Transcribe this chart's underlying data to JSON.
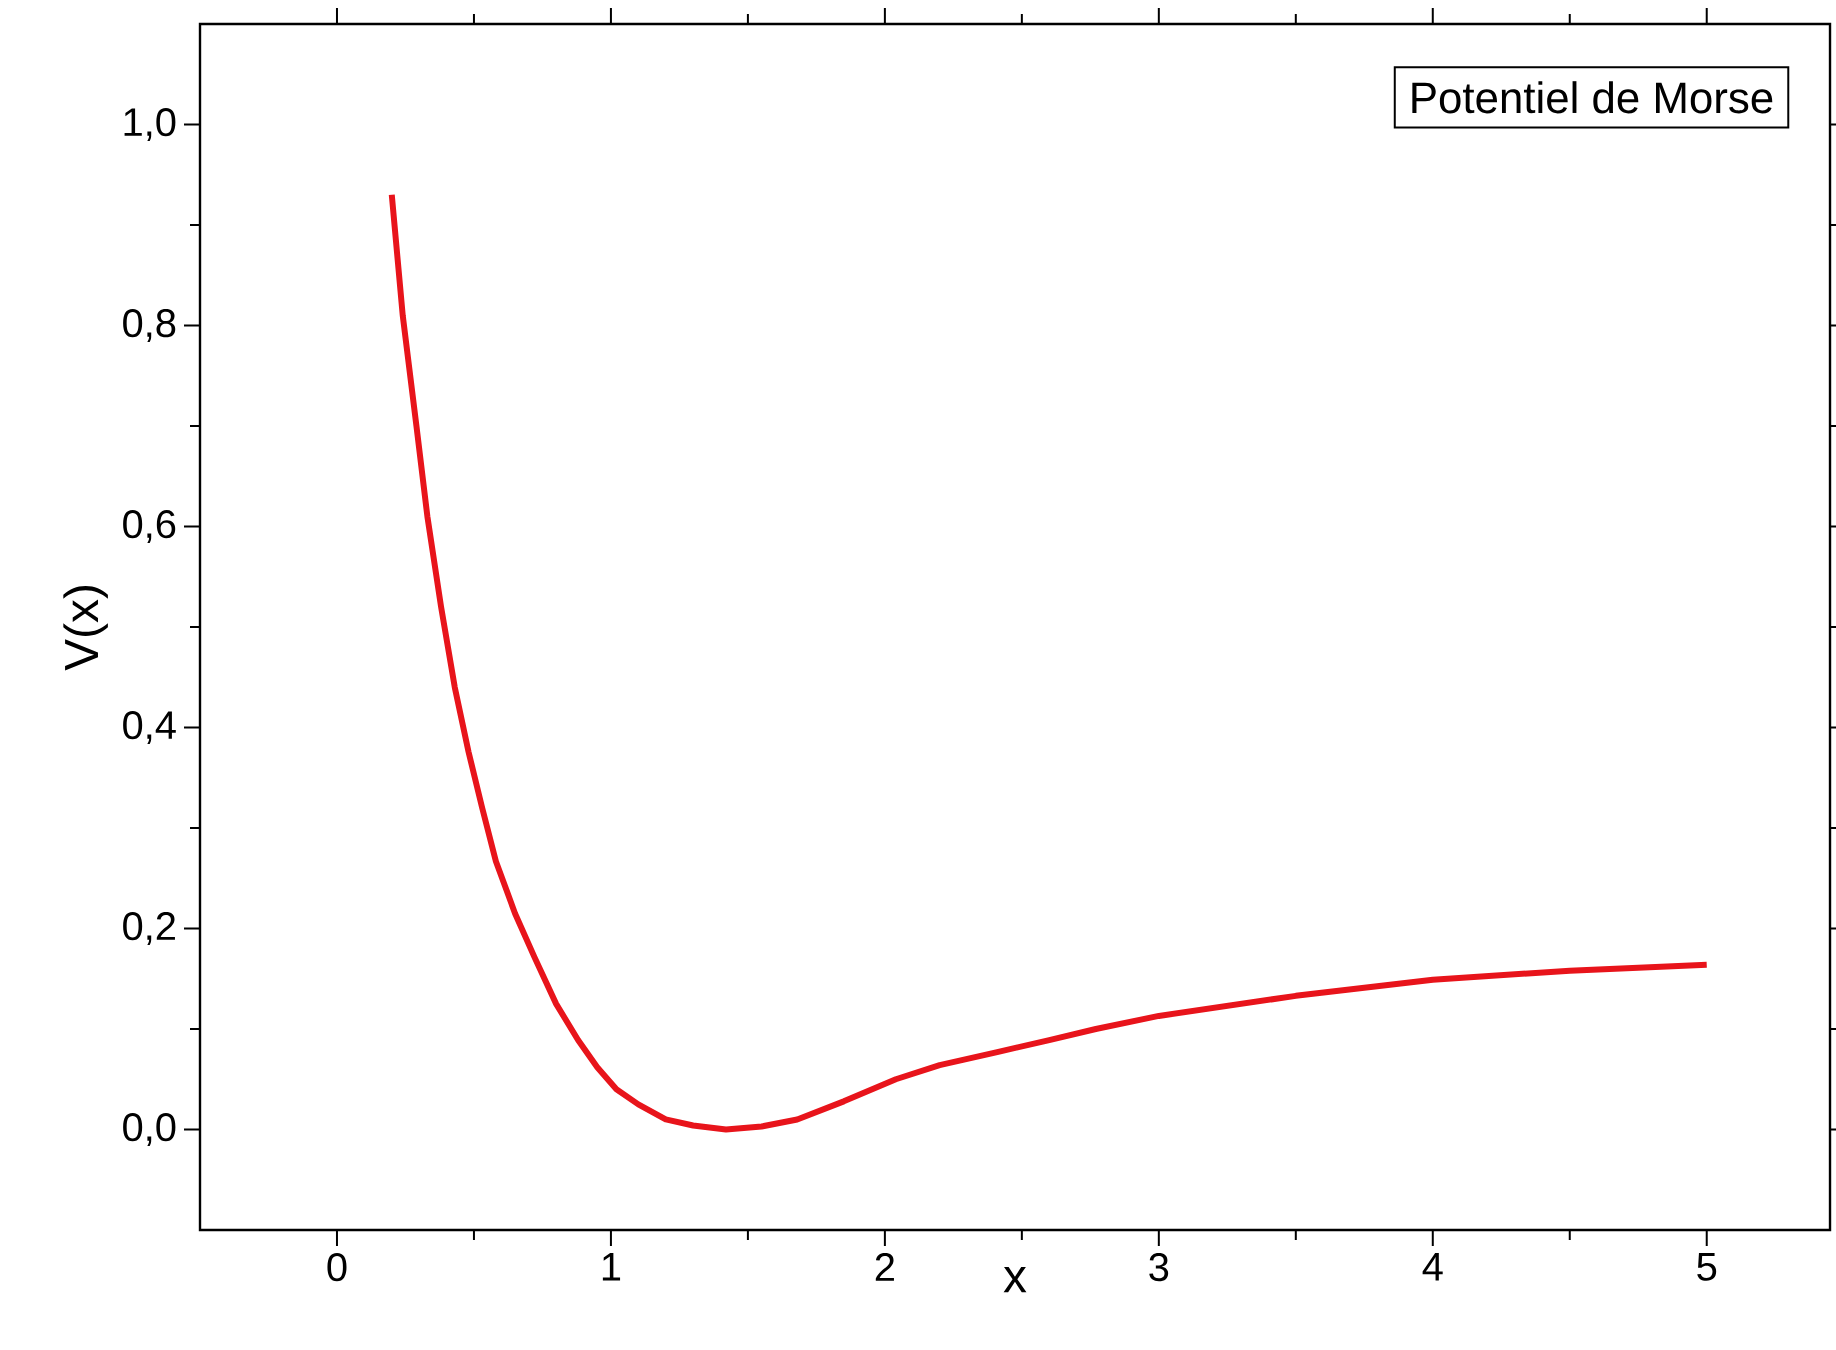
{
  "chart_data": {
    "type": "line",
    "xlabel": "x",
    "ylabel": "V(x)",
    "annotations": [
      "Potentiel de Morse"
    ],
    "series": [
      {
        "color": "#e8141b",
        "x": [
          0.2,
          0.24,
          0.29,
          0.33,
          0.38,
          0.43,
          0.48,
          0.53,
          0.58,
          0.65,
          0.72,
          0.8,
          0.88,
          0.95,
          1.02,
          1.1,
          1.2,
          1.3,
          1.42,
          1.55,
          1.68,
          1.85,
          2.04,
          2.2,
          2.41,
          2.6,
          2.77,
          3.0,
          3.5,
          4.0,
          4.5,
          5.0
        ],
        "values": [
          0.93,
          0.81,
          0.7,
          0.61,
          0.52,
          0.44,
          0.376,
          0.32,
          0.267,
          0.215,
          0.172,
          0.125,
          0.089,
          0.062,
          0.04,
          0.025,
          0.01,
          0.004,
          0.0,
          0.003,
          0.01,
          0.028,
          0.05,
          0.064,
          0.077,
          0.089,
          0.1,
          0.113,
          0.133,
          0.149,
          0.158,
          0.164
        ]
      }
    ],
    "xlim": [
      -0.5,
      5.45
    ],
    "ylim": [
      -0.1,
      1.1
    ],
    "xticks": [
      0,
      1,
      2,
      3,
      4,
      5
    ],
    "yticks": [
      {
        "value": 0.0,
        "label": "0,0"
      },
      {
        "value": 0.2,
        "label": "0,2"
      },
      {
        "value": 0.4,
        "label": "0,4"
      },
      {
        "value": 0.6,
        "label": "0,6"
      },
      {
        "value": 0.8,
        "label": "0,8"
      },
      {
        "value": 1.0,
        "label": "1,0"
      }
    ],
    "grid": false,
    "marker": "none",
    "line_style": "solid"
  }
}
